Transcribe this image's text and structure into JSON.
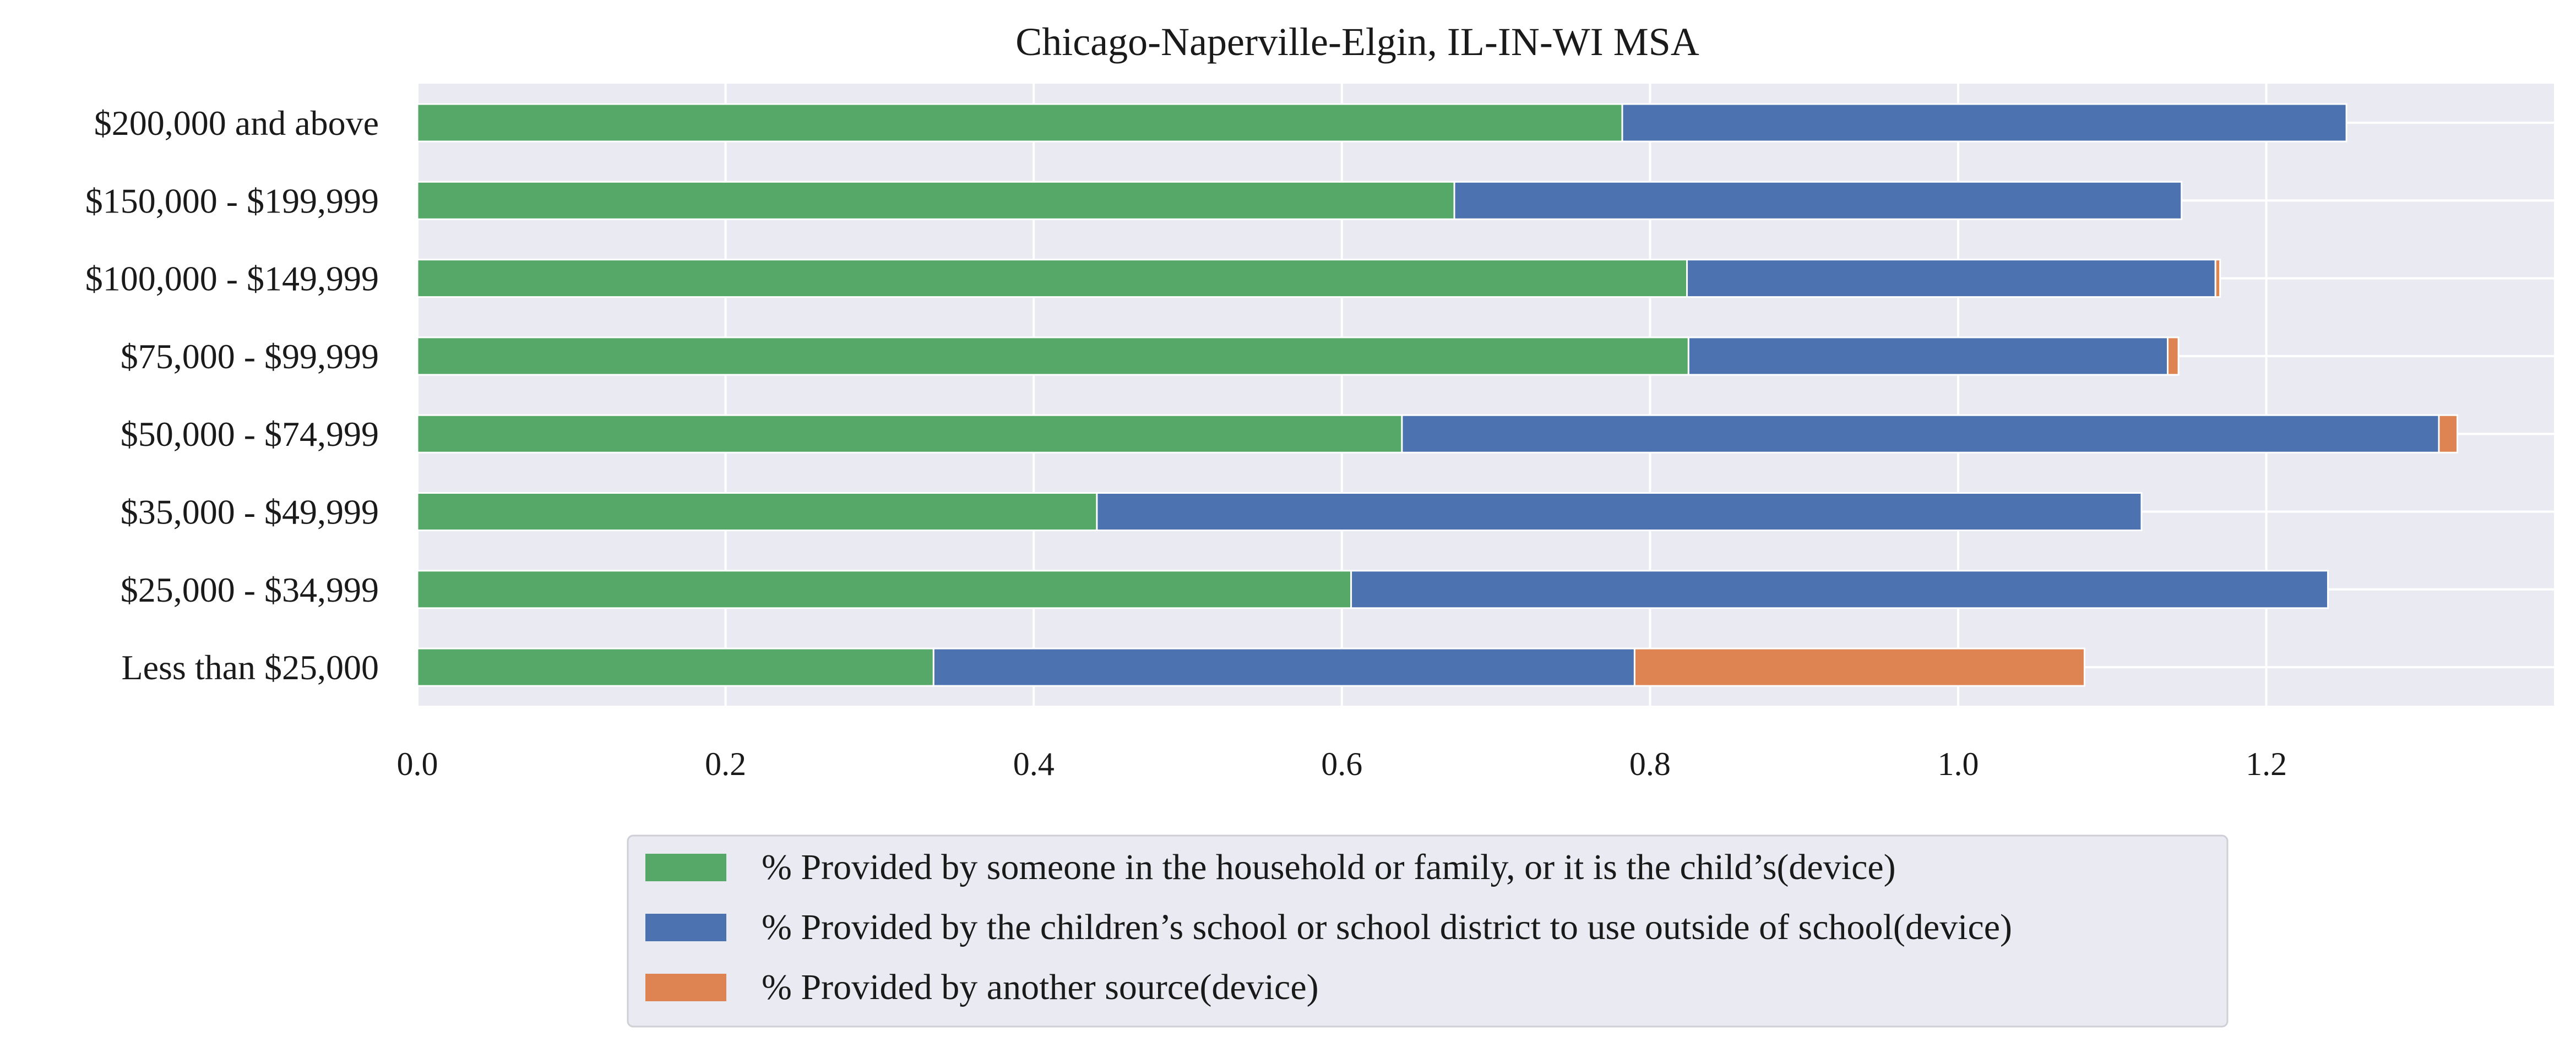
{
  "chart_data": {
    "type": "bar",
    "orientation": "horizontal",
    "stacked": true,
    "title": "Chicago-Naperville-Elgin, IL-IN-WI MSA",
    "xlabel": "",
    "ylabel": "",
    "xlim": [
      0,
      1.39
    ],
    "xticks": [
      "0.0",
      "0.2",
      "0.4",
      "0.6",
      "0.8",
      "1.0",
      "1.2"
    ],
    "xtick_values": [
      0.0,
      0.2,
      0.4,
      0.6,
      0.8,
      1.0,
      1.2
    ],
    "grid": true,
    "legend_placement": "bottom-center",
    "categories": [
      "$200,000 and above",
      "$150,000 - $199,999",
      "$100,000 - $149,999",
      "$75,000 - $99,999",
      "$50,000 - $74,999",
      "$35,000 - $49,999",
      "$25,000 - $34,999",
      "Less than $25,000"
    ],
    "series": [
      {
        "name": "% Provided by someone in the household or family, or it is the child’s(device)",
        "color": "#55a868",
        "values": [
          0.782,
          0.673,
          0.824,
          0.825,
          0.639,
          0.441,
          0.606,
          0.335
        ]
      },
      {
        "name": "% Provided by the children’s school or school district to use outside of school(device)",
        "color": "#4c72b0",
        "values": [
          0.47,
          0.472,
          0.343,
          0.311,
          0.673,
          0.678,
          0.634,
          0.455
        ]
      },
      {
        "name": "% Provided by another source(device)",
        "color": "#dd8452",
        "values": [
          0.0,
          0.0,
          0.003,
          0.007,
          0.012,
          0.0,
          0.0,
          0.292
        ]
      }
    ]
  }
}
